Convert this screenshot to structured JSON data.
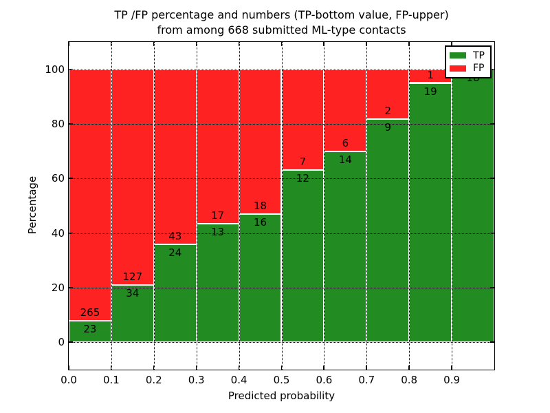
{
  "title": {
    "line1": "TP /FP percentage and numbers (TP-bottom value, FP-upper)",
    "line2": "from among 668 submitted ML-type contacts"
  },
  "chart_data": {
    "type": "bar",
    "stacked": true,
    "normalized": "each bin scaled to 100 percent",
    "title": "TP /FP percentage and numbers (TP-bottom value, FP-upper) from among 668 submitted ML-type contacts",
    "xlabel": "Predicted probability",
    "ylabel": "Percentage",
    "total_contacts": 668,
    "categories": [
      "0.0-0.1",
      "0.1-0.2",
      "0.2-0.3",
      "0.3-0.4",
      "0.4-0.5",
      "0.5-0.6",
      "0.6-0.7",
      "0.7-0.8",
      "0.8-0.9",
      "0.9-1.0"
    ],
    "bin_edges": [
      0.0,
      0.1,
      0.2,
      0.3,
      0.4,
      0.5,
      0.6,
      0.7,
      0.8,
      0.9,
      1.0
    ],
    "series": [
      {
        "name": "TP",
        "color": "#228b22",
        "counts": [
          23,
          34,
          24,
          13,
          16,
          12,
          14,
          9,
          19,
          18
        ],
        "percent_of_bin": [
          7.99,
          21.12,
          35.82,
          43.33,
          47.06,
          63.16,
          70.0,
          81.82,
          95.0,
          100.0
        ]
      },
      {
        "name": "FP",
        "color": "#ff2222",
        "counts": [
          265,
          127,
          43,
          17,
          18,
          7,
          6,
          2,
          1,
          0
        ],
        "percent_of_bin": [
          92.01,
          78.88,
          64.18,
          56.67,
          52.94,
          36.84,
          30.0,
          18.18,
          5.0,
          0.0
        ]
      }
    ],
    "xticks": [
      "0.0",
      "0.1",
      "0.2",
      "0.3",
      "0.4",
      "0.5",
      "0.6",
      "0.7",
      "0.8",
      "0.9"
    ],
    "yticks": [
      0,
      20,
      40,
      60,
      80,
      100
    ],
    "xlim": [
      0,
      1
    ],
    "ylim": [
      -10,
      110
    ],
    "grid": "dotted black, drawn above bars",
    "legend": {
      "position": "upper right",
      "entries": [
        {
          "label": "TP",
          "color": "#228b22"
        },
        {
          "label": "FP",
          "color": "#ff2222"
        }
      ]
    }
  }
}
